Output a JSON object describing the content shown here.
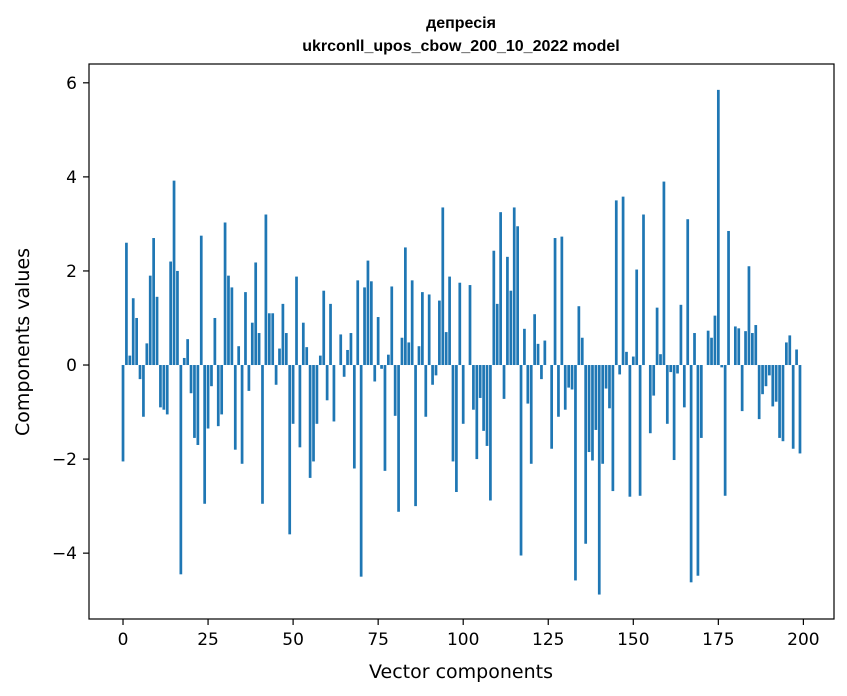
{
  "chart_data": {
    "type": "bar",
    "title_line1": "депресія",
    "title_line2": "ukrconll_upos_cbow_200_10_2022 model",
    "xlabel": "Vector components",
    "ylabel": "Components values",
    "xlim": [
      -10,
      209
    ],
    "ylim": [
      -5.4,
      6.4
    ],
    "xticks": [
      0,
      25,
      50,
      75,
      100,
      125,
      150,
      175,
      200
    ],
    "xtick_labels": [
      "0",
      "25",
      "50",
      "75",
      "100",
      "125",
      "150",
      "175",
      "200"
    ],
    "yticks": [
      -4,
      -2,
      0,
      2,
      4,
      6
    ],
    "ytick_labels": [
      "−4",
      "−2",
      "0",
      "2",
      "4",
      "6"
    ],
    "bar_color": "#1f77b4",
    "x": [
      0,
      1,
      2,
      3,
      4,
      5,
      6,
      7,
      8,
      9,
      10,
      11,
      12,
      13,
      14,
      15,
      16,
      17,
      18,
      19,
      20,
      21,
      22,
      23,
      24,
      25,
      26,
      27,
      28,
      29,
      30,
      31,
      32,
      33,
      34,
      35,
      36,
      37,
      38,
      39,
      40,
      41,
      42,
      43,
      44,
      45,
      46,
      47,
      48,
      49,
      50,
      51,
      52,
      53,
      54,
      55,
      56,
      57,
      58,
      59,
      60,
      61,
      62,
      63,
      64,
      65,
      66,
      67,
      68,
      69,
      70,
      71,
      72,
      73,
      74,
      75,
      76,
      77,
      78,
      79,
      80,
      81,
      82,
      83,
      84,
      85,
      86,
      87,
      88,
      89,
      90,
      91,
      92,
      93,
      94,
      95,
      96,
      97,
      98,
      99,
      100,
      101,
      102,
      103,
      104,
      105,
      106,
      107,
      108,
      109,
      110,
      111,
      112,
      113,
      114,
      115,
      116,
      117,
      118,
      119,
      120,
      121,
      122,
      123,
      124,
      125,
      126,
      127,
      128,
      129,
      130,
      131,
      132,
      133,
      134,
      135,
      136,
      137,
      138,
      139,
      140,
      141,
      142,
      143,
      144,
      145,
      146,
      147,
      148,
      149,
      150,
      151,
      152,
      153,
      154,
      155,
      156,
      157,
      158,
      159,
      160,
      161,
      162,
      163,
      164,
      165,
      166,
      167,
      168,
      169,
      170,
      171,
      172,
      173,
      174,
      175,
      176,
      177,
      178,
      179,
      180,
      181,
      182,
      183,
      184,
      185,
      186,
      187,
      188,
      189,
      190,
      191,
      192,
      193,
      194,
      195,
      196,
      197,
      198,
      199
    ],
    "values": [
      -2.05,
      2.6,
      0.2,
      1.42,
      1.0,
      -0.3,
      -1.1,
      0.46,
      1.9,
      2.7,
      1.45,
      -0.9,
      -0.95,
      -1.05,
      2.2,
      3.92,
      2.0,
      -4.45,
      0.15,
      0.55,
      -0.6,
      -1.55,
      -1.7,
      2.75,
      -2.95,
      -1.35,
      -0.45,
      1.0,
      -1.3,
      -1.05,
      3.03,
      1.9,
      1.65,
      -1.8,
      0.4,
      -2.1,
      1.55,
      -0.55,
      0.9,
      2.18,
      0.68,
      -2.95,
      3.2,
      1.1,
      1.1,
      -0.42,
      0.35,
      1.3,
      0.68,
      -3.6,
      -1.25,
      1.88,
      -1.75,
      0.9,
      0.38,
      -2.4,
      -2.05,
      -1.25,
      0.2,
      1.58,
      -0.75,
      1.3,
      -1.2,
      0.0,
      0.65,
      -0.25,
      0.32,
      0.68,
      -2.2,
      1.8,
      -4.5,
      1.65,
      2.22,
      1.78,
      -0.35,
      1.02,
      -0.08,
      -2.25,
      0.22,
      1.67,
      -1.08,
      -3.12,
      0.58,
      2.5,
      0.48,
      1.8,
      -3.0,
      0.4,
      1.55,
      -1.1,
      1.5,
      -0.42,
      -0.22,
      1.37,
      3.35,
      0.7,
      1.88,
      -2.05,
      -2.7,
      1.75,
      -1.25,
      0.0,
      1.7,
      -0.95,
      -2.0,
      -0.7,
      -1.4,
      -1.72,
      -2.88,
      2.43,
      1.3,
      3.25,
      -0.72,
      2.3,
      1.58,
      3.35,
      2.95,
      -4.05,
      0.77,
      -0.82,
      -2.1,
      1.08,
      0.45,
      -0.3,
      0.52,
      0.0,
      -1.78,
      2.7,
      -1.1,
      2.73,
      -0.95,
      -0.48,
      -0.52,
      -4.58,
      1.25,
      0.58,
      -3.8,
      -1.85,
      -2.03,
      -1.38,
      -4.88,
      -2.1,
      -0.5,
      -0.92,
      -2.68,
      3.5,
      -0.2,
      3.58,
      0.28,
      -2.8,
      0.18,
      2.03,
      -2.78,
      3.2,
      0.0,
      -1.45,
      -0.65,
      1.22,
      0.23,
      3.9,
      -1.25,
      -0.15,
      -2.02,
      -0.18,
      1.28,
      -0.9,
      3.1,
      -4.62,
      0.68,
      -4.48,
      -1.55,
      0.0,
      0.73,
      0.58,
      1.05,
      5.85,
      -0.05,
      -2.78,
      2.85,
      0.0,
      0.82,
      0.78,
      -0.98,
      0.72,
      2.1,
      0.68,
      0.85,
      -1.15,
      -0.62,
      -0.45,
      -0.22,
      -0.88,
      -0.78,
      -1.55,
      -1.62,
      0.48,
      0.63,
      -1.78,
      0.33,
      -1.88
    ]
  }
}
